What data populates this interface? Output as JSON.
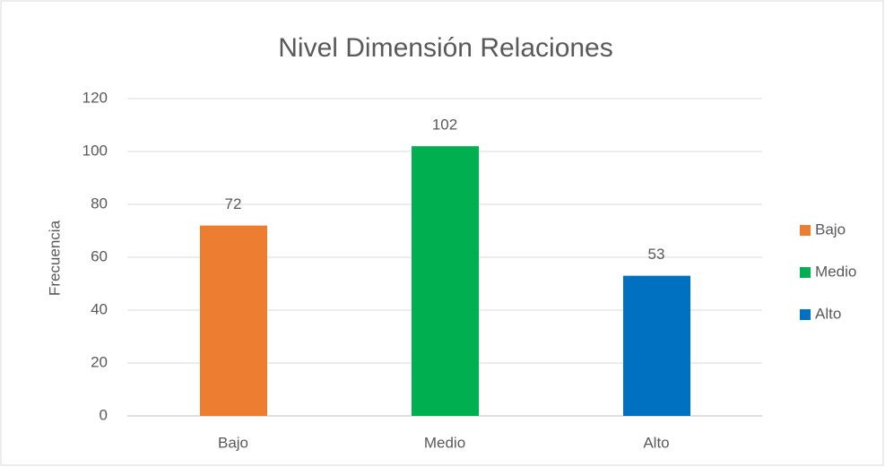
{
  "chart_data": {
    "type": "bar",
    "title": "Nivel Dimensión Relaciones",
    "y_label": "Frecuencia",
    "categories": [
      "Bajo",
      "Medio",
      "Alto"
    ],
    "values": [
      72,
      102,
      53
    ],
    "colors": [
      "#ed7d31",
      "#00b050",
      "#0070c0"
    ],
    "ylim": [
      0,
      120
    ],
    "yticks": [
      0,
      20,
      40,
      60,
      80,
      100,
      120
    ],
    "grid": true,
    "legend": "right",
    "data_labels": true
  }
}
